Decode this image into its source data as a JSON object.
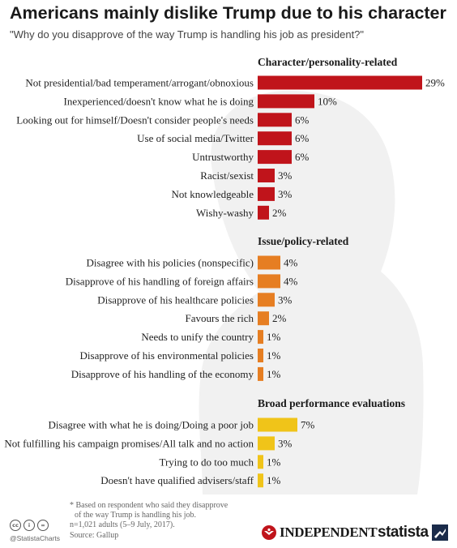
{
  "header": {
    "title": "Americans mainly dislike Trump due to his character",
    "subtitle": "\"Why do you disapprove of the way Trump is handling his job as president?\""
  },
  "chart_data": {
    "type": "bar",
    "orientation": "horizontal",
    "unit": "%",
    "xlim": [
      0,
      29
    ],
    "grid": false,
    "groups": [
      {
        "name": "Character/personality-related",
        "color": "#c0141b",
        "categories": [
          "Not presidential/bad temperament/arrogant/obnoxious",
          "Inexperienced/doesn't know what he is doing",
          "Looking out for himself/Doesn't consider people's needs",
          "Use of social media/Twitter",
          "Untrustworthy",
          "Racist/sexist",
          "Not knowledgeable",
          "Wishy-washy"
        ],
        "values": [
          29,
          10,
          6,
          6,
          6,
          3,
          3,
          2
        ],
        "labels": [
          "29%",
          "10%",
          "6%",
          "6%",
          "6%",
          "3%",
          "3%",
          "2%"
        ]
      },
      {
        "name": "Issue/policy-related",
        "color": "#e67e22",
        "categories": [
          "Disagree with his policies (nonspecific)",
          "Disapprove of his handling of foreign affairs",
          "Disapprove of his healthcare policies",
          "Favours the rich",
          "Needs to unify the country",
          "Disapprove of his environmental policies",
          "Disapprove of his handling of the economy"
        ],
        "values": [
          4,
          4,
          3,
          2,
          1,
          1,
          1
        ],
        "labels": [
          "4%",
          "4%",
          "3%",
          "2%",
          "1%",
          "1%",
          "1%"
        ]
      },
      {
        "name": "Broad performance evaluations",
        "color": "#f0c419",
        "categories": [
          "Disagree with what he is doing/Doing a poor job",
          "Not fulfilling his campaign promises/All talk and no action",
          "Trying to do too much",
          "Doesn't have qualified advisers/staff"
        ],
        "values": [
          7,
          3,
          1,
          1
        ],
        "labels": [
          "7%",
          "3%",
          "1%",
          "1%"
        ]
      }
    ]
  },
  "footer": {
    "note_line1": "* Based on respondent who said they disapprove",
    "note_line2": "of the way Trump is handling his job.",
    "sample": "n=1,021 adults (5–9 July, 2017).",
    "source": "Source: Gallup",
    "handle": "@StatistaCharts",
    "cc_icons": [
      "cc",
      "i",
      "="
    ],
    "brand_independent": "INDEPENDENT",
    "brand_statista": "statista"
  }
}
